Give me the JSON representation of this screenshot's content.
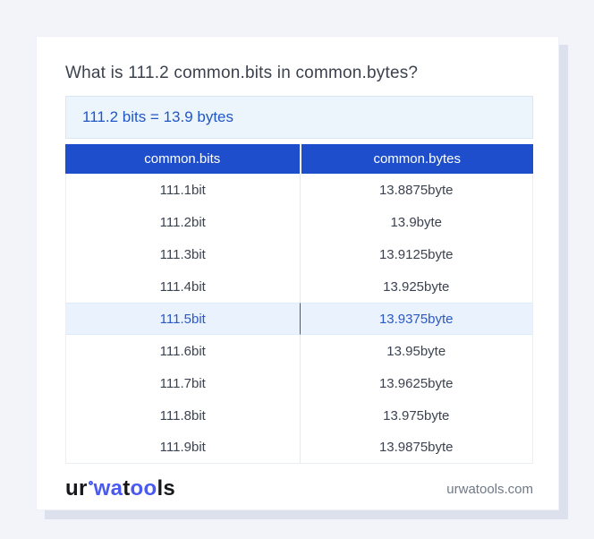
{
  "page": {
    "title": "What is 111.2 common.bits in common.bytes?",
    "result_text": "111.2 bits = 13.9 bytes"
  },
  "table": {
    "headers": [
      "common.bits",
      "common.bytes"
    ],
    "rows": [
      {
        "bits": "111.1bit",
        "bytes": "13.8875byte"
      },
      {
        "bits": "111.2bit",
        "bytes": "13.9byte"
      },
      {
        "bits": "111.3bit",
        "bytes": "13.9125byte"
      },
      {
        "bits": "111.4bit",
        "bytes": "13.925byte"
      },
      {
        "bits": "111.5bit",
        "bytes": "13.9375byte"
      },
      {
        "bits": "111.6bit",
        "bytes": "13.95byte"
      },
      {
        "bits": "111.7bit",
        "bytes": "13.9625byte"
      },
      {
        "bits": "111.8bit",
        "bytes": "13.975byte"
      },
      {
        "bits": "111.9bit",
        "bytes": "13.9875byte"
      }
    ],
    "highlighted_row_index": 4
  },
  "footer": {
    "logo": {
      "seg1": "ur",
      "seg2": "wa",
      "seg3": "t",
      "seg4": "oo",
      "seg5": "ls"
    },
    "domain": "urwatools.com"
  },
  "colors": {
    "page_bg": "#f2f4f9",
    "card_shadow": "#dce1ed",
    "header_blue": "#1e4ecb",
    "result_box_bg": "#edf5fc",
    "result_text_blue": "#2156c5",
    "highlight_row_bg": "#e9f2fd",
    "highlight_text_blue": "#2b58c4",
    "logo_blue": "#4a5af0",
    "domain_gray": "#6f7988"
  }
}
